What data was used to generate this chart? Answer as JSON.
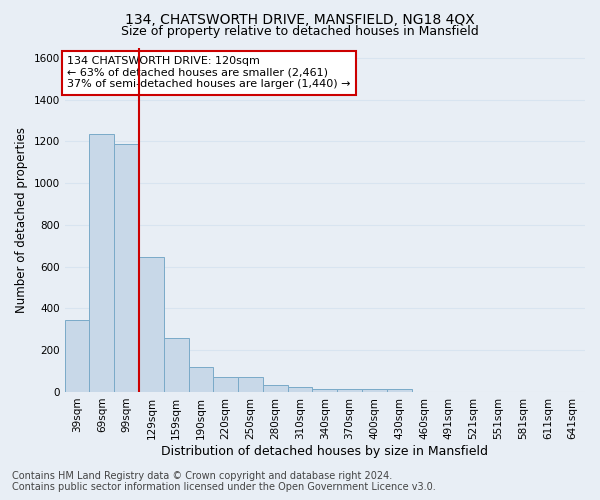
{
  "title": "134, CHATSWORTH DRIVE, MANSFIELD, NG18 4QX",
  "subtitle": "Size of property relative to detached houses in Mansfield",
  "xlabel": "Distribution of detached houses by size in Mansfield",
  "ylabel": "Number of detached properties",
  "footnote1": "Contains HM Land Registry data © Crown copyright and database right 2024.",
  "footnote2": "Contains public sector information licensed under the Open Government Licence v3.0.",
  "annotation_line1": "134 CHATSWORTH DRIVE: 120sqm",
  "annotation_line2": "← 63% of detached houses are smaller (2,461)",
  "annotation_line3": "37% of semi-detached houses are larger (1,440) →",
  "bar_labels": [
    "39sqm",
    "69sqm",
    "99sqm",
    "129sqm",
    "159sqm",
    "190sqm",
    "220sqm",
    "250sqm",
    "280sqm",
    "310sqm",
    "340sqm",
    "370sqm",
    "400sqm",
    "430sqm",
    "460sqm",
    "491sqm",
    "521sqm",
    "551sqm",
    "581sqm",
    "611sqm",
    "641sqm"
  ],
  "bar_values": [
    345,
    1235,
    1190,
    645,
    260,
    120,
    72,
    72,
    35,
    22,
    15,
    15,
    15,
    15,
    0,
    0,
    0,
    0,
    0,
    0,
    0
  ],
  "bar_color": "#c8d8e8",
  "bar_edgecolor": "#7aaac8",
  "red_line_color": "#cc0000",
  "red_line_x": 2.5,
  "ylim": [
    0,
    1650
  ],
  "yticks": [
    0,
    200,
    400,
    600,
    800,
    1000,
    1200,
    1400,
    1600
  ],
  "grid_color": "#d8e4f0",
  "bg_color": "#e8eef5",
  "annotation_box_color": "#ffffff",
  "annotation_box_edgecolor": "#cc0000",
  "title_fontsize": 10,
  "subtitle_fontsize": 9,
  "xlabel_fontsize": 9,
  "ylabel_fontsize": 8.5,
  "tick_fontsize": 7.5,
  "annotation_fontsize": 8,
  "footnote_fontsize": 7
}
